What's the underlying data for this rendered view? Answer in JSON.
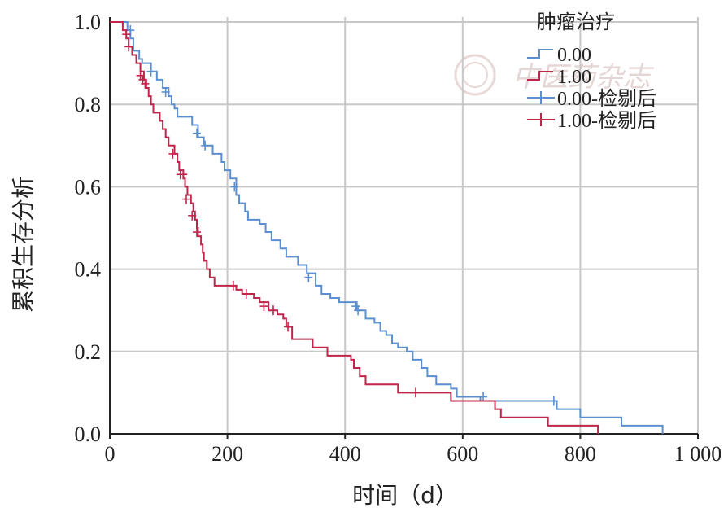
{
  "chart_data": {
    "type": "line",
    "subtype": "kaplan-meier step",
    "xlabel": "时间（d）",
    "ylabel": "累积生存分析",
    "xlim": [
      0,
      1000
    ],
    "ylim": [
      0,
      1.0
    ],
    "x_ticks": [
      "0",
      "200",
      "400",
      "600",
      "800",
      "1 000"
    ],
    "y_ticks": [
      "0.0",
      "0.2",
      "0.4",
      "0.6",
      "0.8",
      "1.0"
    ],
    "grid": true,
    "legend": {
      "title": "肿瘤治疗",
      "position": "top-right",
      "entries": [
        "0.00",
        "1.00",
        "0.00-检剔后",
        "1.00-检剔后"
      ]
    },
    "series": [
      {
        "name": "0.00",
        "color": "#5b8fd0",
        "steps": [
          [
            0,
            1.0
          ],
          [
            30,
            0.98
          ],
          [
            35,
            0.96
          ],
          [
            40,
            0.93
          ],
          [
            50,
            0.91
          ],
          [
            55,
            0.9
          ],
          [
            70,
            0.88
          ],
          [
            80,
            0.86
          ],
          [
            90,
            0.84
          ],
          [
            100,
            0.82
          ],
          [
            105,
            0.8
          ],
          [
            110,
            0.79
          ],
          [
            115,
            0.77
          ],
          [
            140,
            0.75
          ],
          [
            150,
            0.72
          ],
          [
            160,
            0.7
          ],
          [
            175,
            0.68
          ],
          [
            190,
            0.66
          ],
          [
            195,
            0.64
          ],
          [
            205,
            0.62
          ],
          [
            215,
            0.58
          ],
          [
            220,
            0.56
          ],
          [
            230,
            0.54
          ],
          [
            235,
            0.52
          ],
          [
            255,
            0.51
          ],
          [
            265,
            0.49
          ],
          [
            275,
            0.47
          ],
          [
            290,
            0.45
          ],
          [
            300,
            0.43
          ],
          [
            320,
            0.41
          ],
          [
            335,
            0.39
          ],
          [
            350,
            0.36
          ],
          [
            360,
            0.34
          ],
          [
            375,
            0.33
          ],
          [
            390,
            0.32
          ],
          [
            420,
            0.3
          ],
          [
            435,
            0.28
          ],
          [
            450,
            0.27
          ],
          [
            460,
            0.25
          ],
          [
            470,
            0.24
          ],
          [
            480,
            0.22
          ],
          [
            490,
            0.21
          ],
          [
            505,
            0.2
          ],
          [
            515,
            0.18
          ],
          [
            530,
            0.16
          ],
          [
            540,
            0.14
          ],
          [
            555,
            0.12
          ],
          [
            580,
            0.11
          ],
          [
            590,
            0.09
          ],
          [
            630,
            0.08
          ],
          [
            760,
            0.06
          ],
          [
            800,
            0.04
          ],
          [
            870,
            0.02
          ],
          [
            940,
            0.0
          ]
        ],
        "censored": [
          [
            35,
            0.98
          ],
          [
            70,
            0.88
          ],
          [
            95,
            0.83
          ],
          [
            148,
            0.73
          ],
          [
            162,
            0.7
          ],
          [
            212,
            0.6
          ],
          [
            338,
            0.38
          ],
          [
            418,
            0.31
          ],
          [
            422,
            0.3
          ],
          [
            635,
            0.09
          ],
          [
            755,
            0.08
          ]
        ]
      },
      {
        "name": "1.00",
        "color": "#c0264b",
        "steps": [
          [
            0,
            1.0
          ],
          [
            22,
            0.98
          ],
          [
            28,
            0.96
          ],
          [
            32,
            0.94
          ],
          [
            38,
            0.92
          ],
          [
            45,
            0.9
          ],
          [
            52,
            0.88
          ],
          [
            58,
            0.86
          ],
          [
            62,
            0.84
          ],
          [
            66,
            0.82
          ],
          [
            70,
            0.8
          ],
          [
            74,
            0.78
          ],
          [
            85,
            0.76
          ],
          [
            90,
            0.74
          ],
          [
            95,
            0.72
          ],
          [
            100,
            0.7
          ],
          [
            110,
            0.68
          ],
          [
            115,
            0.66
          ],
          [
            118,
            0.64
          ],
          [
            125,
            0.62
          ],
          [
            128,
            0.6
          ],
          [
            132,
            0.58
          ],
          [
            138,
            0.56
          ],
          [
            142,
            0.54
          ],
          [
            145,
            0.52
          ],
          [
            148,
            0.5
          ],
          [
            150,
            0.48
          ],
          [
            155,
            0.46
          ],
          [
            158,
            0.44
          ],
          [
            160,
            0.42
          ],
          [
            165,
            0.4
          ],
          [
            170,
            0.38
          ],
          [
            178,
            0.36
          ],
          [
            215,
            0.35
          ],
          [
            225,
            0.34
          ],
          [
            245,
            0.33
          ],
          [
            255,
            0.32
          ],
          [
            270,
            0.3
          ],
          [
            285,
            0.29
          ],
          [
            295,
            0.28
          ],
          [
            300,
            0.26
          ],
          [
            310,
            0.23
          ],
          [
            345,
            0.21
          ],
          [
            370,
            0.19
          ],
          [
            410,
            0.18
          ],
          [
            415,
            0.16
          ],
          [
            425,
            0.14
          ],
          [
            435,
            0.12
          ],
          [
            490,
            0.1
          ],
          [
            580,
            0.08
          ],
          [
            655,
            0.06
          ],
          [
            665,
            0.04
          ],
          [
            745,
            0.02
          ],
          [
            830,
            0.0
          ]
        ],
        "censored": [
          [
            28,
            0.97
          ],
          [
            32,
            0.94
          ],
          [
            52,
            0.87
          ],
          [
            56,
            0.86
          ],
          [
            60,
            0.85
          ],
          [
            107,
            0.68
          ],
          [
            120,
            0.63
          ],
          [
            125,
            0.63
          ],
          [
            130,
            0.57
          ],
          [
            140,
            0.53
          ],
          [
            148,
            0.49
          ],
          [
            210,
            0.36
          ],
          [
            232,
            0.34
          ],
          [
            262,
            0.31
          ],
          [
            278,
            0.3
          ],
          [
            303,
            0.26
          ],
          [
            520,
            0.1
          ]
        ]
      }
    ]
  },
  "watermark": {
    "text": "中医药杂志",
    "visible": true
  }
}
